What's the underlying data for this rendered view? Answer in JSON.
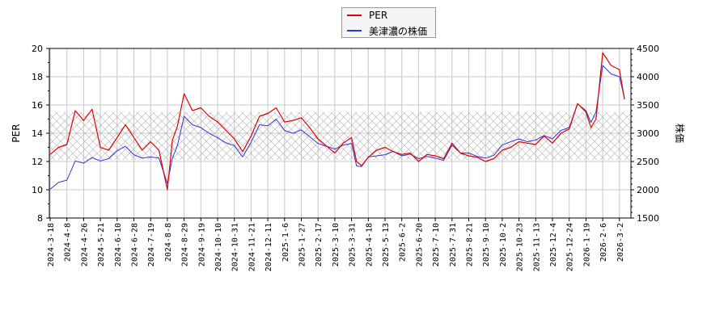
{
  "legend": {
    "items": [
      {
        "label": "PER",
        "color": "#e00000"
      },
      {
        "label": "美津濃の株価",
        "color": "#3333dd"
      }
    ]
  },
  "axes": {
    "left_label": "PER",
    "right_label": "株価"
  },
  "chart_data": {
    "type": "line",
    "title": "",
    "xlabel": "",
    "ylabel": "PER",
    "y2label": "株価",
    "ylim": [
      8,
      20
    ],
    "y2lim": [
      1500,
      4500
    ],
    "yticks": [
      8,
      10,
      12,
      14,
      16,
      18,
      20
    ],
    "y2ticks": [
      1500,
      2000,
      2500,
      3000,
      3500,
      4000,
      4500
    ],
    "grid": true,
    "legend_position": "top-center",
    "shaded_band": {
      "y_from": 12.1,
      "y_to": 15.5,
      "pattern": "crosshatch"
    },
    "x_tick_labels": [
      "2024-3-18",
      "2024-4-8",
      "2024-4-26",
      "2024-5-21",
      "2024-6-10",
      "2024-6-28",
      "2024-7-19",
      "2024-8-8",
      "2024-8-29",
      "2024-9-19",
      "2024-10-10",
      "2024-10-31",
      "2024-11-21",
      "2024-12-11",
      "2025-1-6",
      "2025-1-27",
      "2025-2-17",
      "2025-3-10",
      "2025-3-31",
      "2025-4-18",
      "2025-5-13",
      "2025-6-2",
      "2025-6-20",
      "2025-7-10",
      "2025-7-31",
      "2025-8-21",
      "2025-9-10",
      "2025-10-2",
      "2025-10-23",
      "2025-11-13",
      "2025-12-4",
      "2025-12-24",
      "2026-1-19",
      "2026-2-6",
      "2026-3-2"
    ],
    "series": [
      {
        "name": "PER",
        "axis": "left",
        "color": "#e00000",
        "x_index": [
          0,
          0.5,
          1,
          1.5,
          2,
          2.5,
          3,
          3.5,
          4,
          4.5,
          5,
          5.5,
          6,
          6.5,
          7,
          7.3,
          7.6,
          8,
          8.5,
          9,
          9.5,
          10,
          10.5,
          11,
          11.5,
          12,
          12.5,
          13,
          13.5,
          14,
          14.5,
          15,
          15.5,
          16,
          16.5,
          17,
          17.5,
          18,
          18.3,
          18.6,
          19,
          19.5,
          20,
          20.5,
          21,
          21.5,
          22,
          22.5,
          23,
          23.5,
          24,
          24.5,
          25,
          25.5,
          26,
          26.5,
          27,
          27.5,
          28,
          28.5,
          29,
          29.5,
          30,
          30.5,
          31,
          31.5,
          32,
          32.3,
          32.6,
          33,
          33.5,
          34,
          34.3
        ],
        "values": [
          12.5,
          13.0,
          13.2,
          15.6,
          14.9,
          15.7,
          13.0,
          12.8,
          13.7,
          14.6,
          13.7,
          12.8,
          13.4,
          12.8,
          10.0,
          13.5,
          14.5,
          16.8,
          15.6,
          15.8,
          15.2,
          14.8,
          14.2,
          13.6,
          12.7,
          13.8,
          15.2,
          15.4,
          15.8,
          14.8,
          14.9,
          15.1,
          14.4,
          13.6,
          13.1,
          12.6,
          13.3,
          13.7,
          12.0,
          11.7,
          12.3,
          12.8,
          13.0,
          12.7,
          12.5,
          12.6,
          12.0,
          12.5,
          12.4,
          12.2,
          13.3,
          12.6,
          12.4,
          12.3,
          12.0,
          12.2,
          12.8,
          13.0,
          13.4,
          13.3,
          13.2,
          13.8,
          13.3,
          14.0,
          14.3,
          16.1,
          15.5,
          14.4,
          15.0,
          19.7,
          18.8,
          18.5,
          16.4
        ]
      },
      {
        "name": "美津濃の株価",
        "axis": "right",
        "color": "#3333dd",
        "x_index": [
          0,
          0.5,
          1,
          1.5,
          2,
          2.5,
          3,
          3.5,
          4,
          4.5,
          5,
          5.5,
          6,
          6.5,
          7,
          7.3,
          7.6,
          8,
          8.5,
          9,
          9.5,
          10,
          10.5,
          11,
          11.5,
          12,
          12.5,
          13,
          13.5,
          14,
          14.5,
          15,
          15.5,
          16,
          16.5,
          17,
          17.5,
          18,
          18.3,
          18.6,
          19,
          19.5,
          20,
          20.5,
          21,
          21.5,
          22,
          22.5,
          23,
          23.5,
          24,
          24.5,
          25,
          25.5,
          26,
          26.5,
          27,
          27.5,
          28,
          28.5,
          29,
          29.5,
          30,
          30.5,
          31,
          31.5,
          32,
          32.3,
          32.6,
          33,
          33.5,
          34,
          34.3
        ],
        "values": [
          2010,
          2130,
          2170,
          2510,
          2470,
          2570,
          2510,
          2550,
          2690,
          2770,
          2620,
          2560,
          2580,
          2560,
          2110,
          2560,
          2780,
          3300,
          3150,
          3100,
          3000,
          2920,
          2830,
          2780,
          2580,
          2840,
          3150,
          3130,
          3250,
          3050,
          3000,
          3060,
          2940,
          2820,
          2770,
          2720,
          2790,
          2820,
          2420,
          2410,
          2580,
          2600,
          2620,
          2680,
          2600,
          2630,
          2550,
          2590,
          2560,
          2520,
          2790,
          2650,
          2650,
          2590,
          2560,
          2610,
          2790,
          2850,
          2900,
          2850,
          2880,
          2960,
          2900,
          3050,
          3100,
          3520,
          3400,
          3190,
          3380,
          4200,
          4050,
          4000,
          3620
        ]
      }
    ]
  }
}
